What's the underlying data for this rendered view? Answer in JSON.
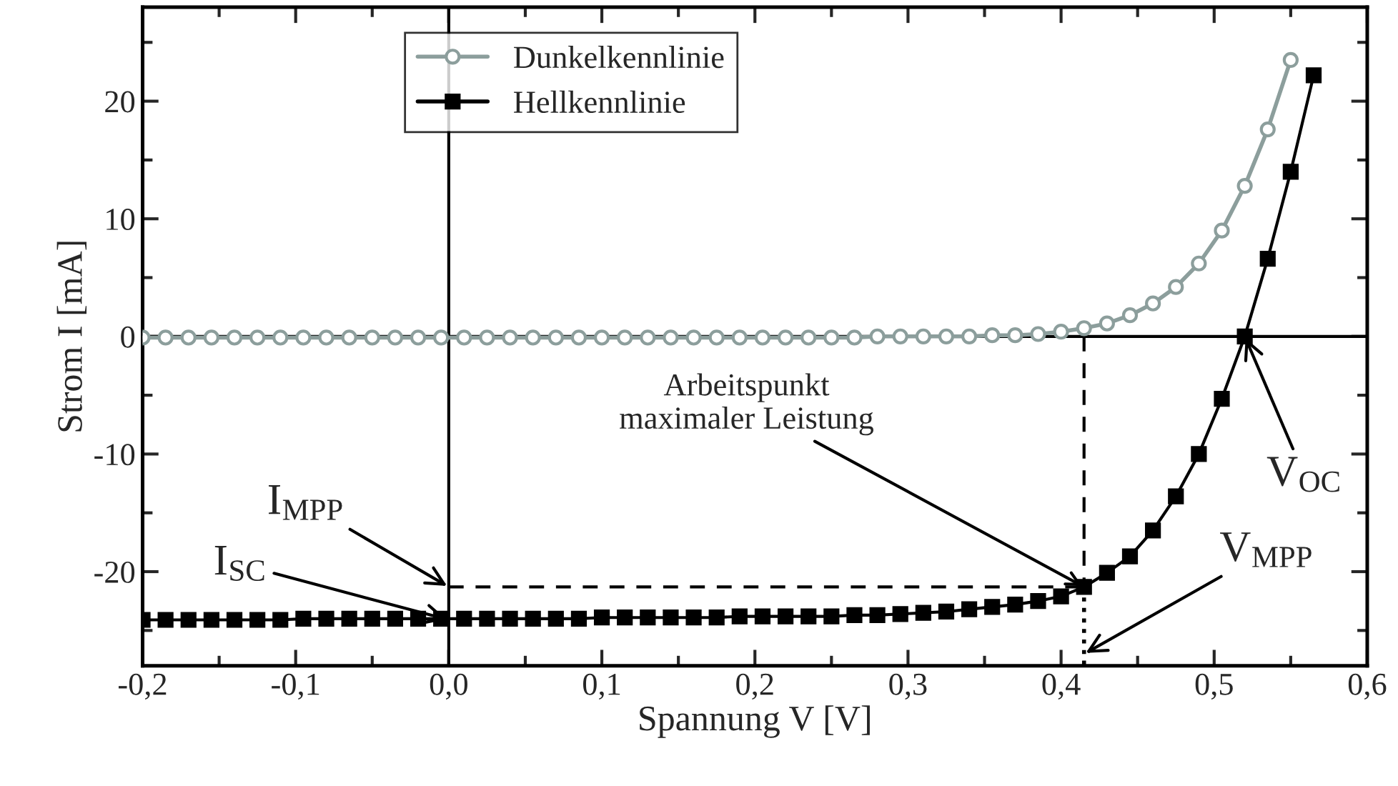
{
  "chart_data": {
    "type": "line",
    "xlabel": "Spannung V [V]",
    "ylabel": "Strom I [mA]",
    "xlim": [
      -0.2,
      0.6
    ],
    "ylim": [
      -28,
      28
    ],
    "xticks": [
      {
        "value": -0.2,
        "label": "-0,2"
      },
      {
        "value": -0.1,
        "label": "-0,1"
      },
      {
        "value": 0.0,
        "label": "0,0"
      },
      {
        "value": 0.1,
        "label": "0,1"
      },
      {
        "value": 0.2,
        "label": "0,2"
      },
      {
        "value": 0.3,
        "label": "0,3"
      },
      {
        "value": 0.4,
        "label": "0,4"
      },
      {
        "value": 0.5,
        "label": "0,5"
      },
      {
        "value": 0.6,
        "label": "0,6"
      }
    ],
    "yticks": [
      -20,
      -10,
      0,
      10,
      20
    ],
    "grid": false,
    "legend": "top",
    "series": [
      {
        "name": "Dunkelkennlinie",
        "color": "#8c9e9c",
        "marker": "circle",
        "x": [
          -0.2,
          -0.185,
          -0.17,
          -0.155,
          -0.14,
          -0.125,
          -0.11,
          -0.095,
          -0.08,
          -0.065,
          -0.05,
          -0.035,
          -0.02,
          -0.005,
          0.01,
          0.025,
          0.04,
          0.055,
          0.07,
          0.085,
          0.1,
          0.115,
          0.13,
          0.145,
          0.16,
          0.175,
          0.19,
          0.205,
          0.22,
          0.235,
          0.25,
          0.265,
          0.28,
          0.295,
          0.31,
          0.325,
          0.34,
          0.355,
          0.37,
          0.385,
          0.4,
          0.415,
          0.43,
          0.445,
          0.46,
          0.475,
          0.49,
          0.505,
          0.52,
          0.535,
          0.55
        ],
        "values": [
          -0.1,
          -0.1,
          -0.1,
          -0.1,
          -0.1,
          -0.1,
          -0.1,
          -0.1,
          -0.1,
          -0.1,
          -0.1,
          -0.1,
          -0.1,
          -0.1,
          -0.1,
          -0.1,
          -0.1,
          -0.1,
          -0.1,
          -0.1,
          -0.1,
          -0.1,
          -0.1,
          -0.1,
          -0.1,
          -0.1,
          -0.1,
          -0.1,
          -0.1,
          -0.1,
          -0.1,
          -0.1,
          0,
          0,
          0,
          0,
          0,
          0.1,
          0.1,
          0.2,
          0.4,
          0.7,
          1.1,
          1.8,
          2.8,
          4.2,
          6.2,
          9.0,
          12.8,
          17.6,
          23.5
        ]
      },
      {
        "name": "Hellkennlinie",
        "color": "#000000",
        "marker": "square",
        "x": [
          -0.2,
          -0.185,
          -0.17,
          -0.155,
          -0.14,
          -0.125,
          -0.11,
          -0.095,
          -0.08,
          -0.065,
          -0.05,
          -0.035,
          -0.02,
          -0.005,
          0.01,
          0.025,
          0.04,
          0.055,
          0.07,
          0.085,
          0.1,
          0.115,
          0.13,
          0.145,
          0.16,
          0.175,
          0.19,
          0.205,
          0.22,
          0.235,
          0.25,
          0.265,
          0.28,
          0.295,
          0.31,
          0.325,
          0.34,
          0.355,
          0.37,
          0.385,
          0.4,
          0.415,
          0.43,
          0.445,
          0.46,
          0.475,
          0.49,
          0.505,
          0.52,
          0.535,
          0.55,
          0.565
        ],
        "values": [
          -24.1,
          -24.1,
          -24.1,
          -24.1,
          -24.1,
          -24.1,
          -24.1,
          -24.0,
          -24.0,
          -24.0,
          -24.0,
          -24.0,
          -24.0,
          -24.0,
          -24.0,
          -24.0,
          -24.0,
          -24.0,
          -24.0,
          -24.0,
          -23.9,
          -23.9,
          -23.9,
          -23.9,
          -23.9,
          -23.9,
          -23.8,
          -23.8,
          -23.8,
          -23.8,
          -23.8,
          -23.7,
          -23.7,
          -23.6,
          -23.5,
          -23.4,
          -23.2,
          -23.0,
          -22.8,
          -22.5,
          -22.1,
          -21.3,
          -20.1,
          -18.7,
          -16.5,
          -13.6,
          -10.0,
          -5.3,
          0,
          6.6,
          14.0,
          22.2
        ]
      }
    ],
    "ref_lines": [
      {
        "axis": "x",
        "value": 0,
        "color": "#000000",
        "line_style": "solid"
      },
      {
        "axis": "y",
        "value": 0,
        "color": "#000000",
        "line_style": "solid"
      },
      {
        "axis": "y",
        "value": -21.3,
        "color": "#000000",
        "line_style": "dashed"
      },
      {
        "axis": "x",
        "value": 0.415,
        "color": "#000000",
        "line_style": "dashed"
      },
      {
        "axis": "x",
        "value": 0.415,
        "color": "#000000",
        "line_style": "dotted"
      }
    ],
    "annotations": [
      {
        "text": "I$_{MPP}$",
        "x": 0,
        "y": -21.3
      },
      {
        "text": "I$_{SC}$",
        "x": 0,
        "y": -24.1
      },
      {
        "text": "Arbeitspunkt\nmaximaler Leistung",
        "x": 0.415,
        "y": -21.3
      },
      {
        "text": "V$_{OC}$",
        "x": 0.52,
        "y": 0
      },
      {
        "text": "V$_{MPP}$",
        "x": 0.415,
        "y": -27
      }
    ]
  }
}
